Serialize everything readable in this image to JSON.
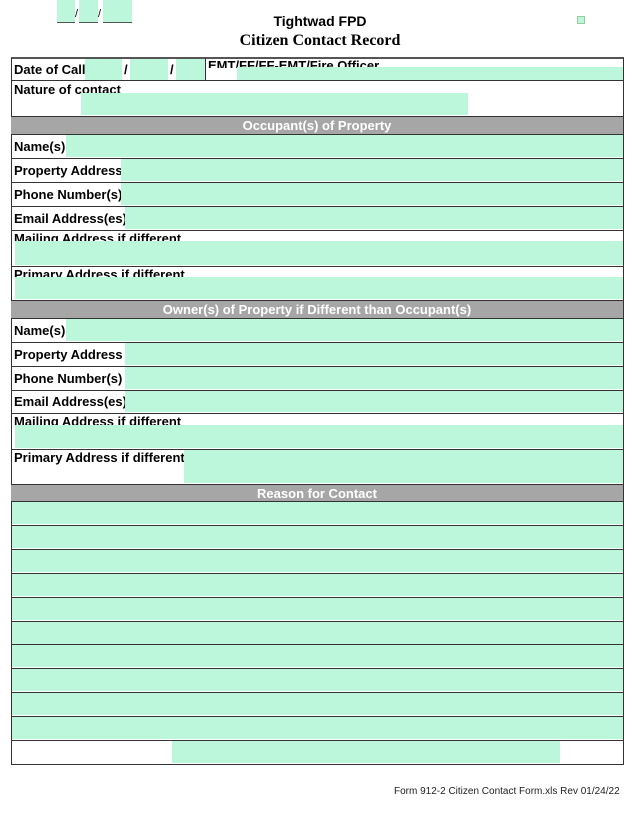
{
  "header": {
    "title": "Tightwad FPD",
    "subtitle": "Citizen Contact Record",
    "date_sep": "/"
  },
  "date_row": {
    "date_label": "Date of Call",
    "sep": "/",
    "crew_label": "EMT/FF/FF-EMT/Fire Officer"
  },
  "nature_label": "Nature of contact",
  "occupant": {
    "heading": "Occupant(s) of Property",
    "names": "Name(s)",
    "property": "Property Address",
    "phone": "Phone Number(s)",
    "email": "Email Address(es)",
    "mailing": "Mailing Address if different",
    "primary": "Primary Address if different"
  },
  "owner": {
    "heading": "Owner(s) of Property if Different than Occupant(s)",
    "names": "Name(s)",
    "property": "Property Address",
    "phone": "Phone Number(s)",
    "email": "Email Address(es)",
    "mailing": "Mailing Address if different",
    "primary": "Primary Address if different"
  },
  "reason": {
    "heading": "Reason for Contact"
  },
  "footer": "Form 912-2 Citizen Contact Form.xls Rev 01/24/22",
  "colors": {
    "field": "#bdf7db",
    "section": "#a6a6a6"
  }
}
